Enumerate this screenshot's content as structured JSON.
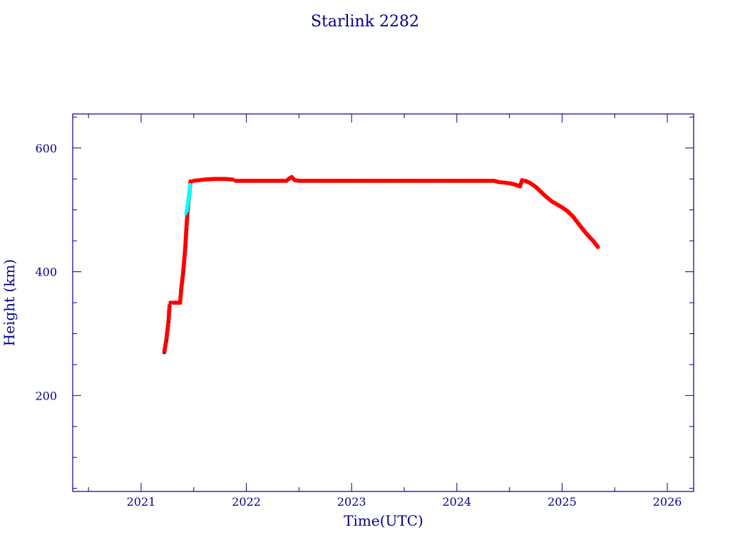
{
  "chart_data": {
    "type": "scatter",
    "title": "Starlink 2282",
    "xlabel": "Time(UTC)",
    "ylabel": "Height (km)",
    "xlim": [
      2020.35,
      2026.25
    ],
    "ylim": [
      45,
      655
    ],
    "x_ticks": [
      2021,
      2022,
      2023,
      2024,
      2025,
      2026
    ],
    "y_ticks": [
      200,
      400,
      600
    ],
    "grid": false,
    "colors": {
      "axis": "#00008b",
      "main_series": "#ff0000",
      "highlight_series": "#00ffff",
      "marker_dark": "#3a3a3a"
    },
    "series": [
      {
        "color": "#ff0000",
        "points": [
          [
            2021.22,
            270
          ],
          [
            2021.24,
            290
          ],
          [
            2021.26,
            320
          ],
          [
            2021.27,
            345
          ],
          [
            2021.28,
            350
          ],
          [
            2021.31,
            350
          ],
          [
            2021.35,
            350
          ],
          [
            2021.37,
            350
          ],
          [
            2021.38,
            370
          ],
          [
            2021.4,
            400
          ],
          [
            2021.42,
            440
          ],
          [
            2021.43,
            470
          ],
          [
            2021.44,
            495
          ],
          [
            2021.47,
            546
          ],
          [
            2021.5,
            547
          ],
          [
            2021.55,
            548
          ],
          [
            2021.6,
            549
          ],
          [
            2021.7,
            550
          ],
          [
            2021.8,
            550
          ],
          [
            2021.87,
            549
          ],
          [
            2021.9,
            547
          ],
          [
            2022.0,
            547
          ],
          [
            2022.1,
            547
          ],
          [
            2022.2,
            547
          ],
          [
            2022.3,
            547
          ],
          [
            2022.38,
            547
          ],
          [
            2022.41,
            551
          ],
          [
            2022.43,
            553
          ],
          [
            2022.46,
            548
          ],
          [
            2022.5,
            547
          ],
          [
            2022.6,
            547
          ],
          [
            2022.8,
            547
          ],
          [
            2023.0,
            547
          ],
          [
            2023.2,
            547
          ],
          [
            2023.4,
            547
          ],
          [
            2023.6,
            547
          ],
          [
            2023.8,
            547
          ],
          [
            2024.0,
            547
          ],
          [
            2024.2,
            547
          ],
          [
            2024.35,
            547
          ],
          [
            2024.4,
            545
          ],
          [
            2024.45,
            544
          ],
          [
            2024.5,
            543
          ],
          [
            2024.55,
            541
          ],
          [
            2024.6,
            538
          ],
          [
            2024.62,
            548
          ],
          [
            2024.65,
            547
          ],
          [
            2024.7,
            543
          ],
          [
            2024.75,
            537
          ],
          [
            2024.8,
            529
          ],
          [
            2024.85,
            521
          ],
          [
            2024.9,
            514
          ],
          [
            2024.95,
            509
          ],
          [
            2025.0,
            504
          ],
          [
            2025.05,
            498
          ],
          [
            2025.1,
            490
          ],
          [
            2025.15,
            479
          ],
          [
            2025.2,
            468
          ],
          [
            2025.25,
            458
          ],
          [
            2025.3,
            449
          ],
          [
            2025.34,
            440
          ]
        ]
      },
      {
        "color": "#00ffff",
        "points": [
          [
            2021.43,
            495
          ],
          [
            2021.44,
            505
          ],
          [
            2021.45,
            515
          ],
          [
            2021.46,
            530
          ],
          [
            2021.465,
            540
          ]
        ]
      }
    ]
  }
}
